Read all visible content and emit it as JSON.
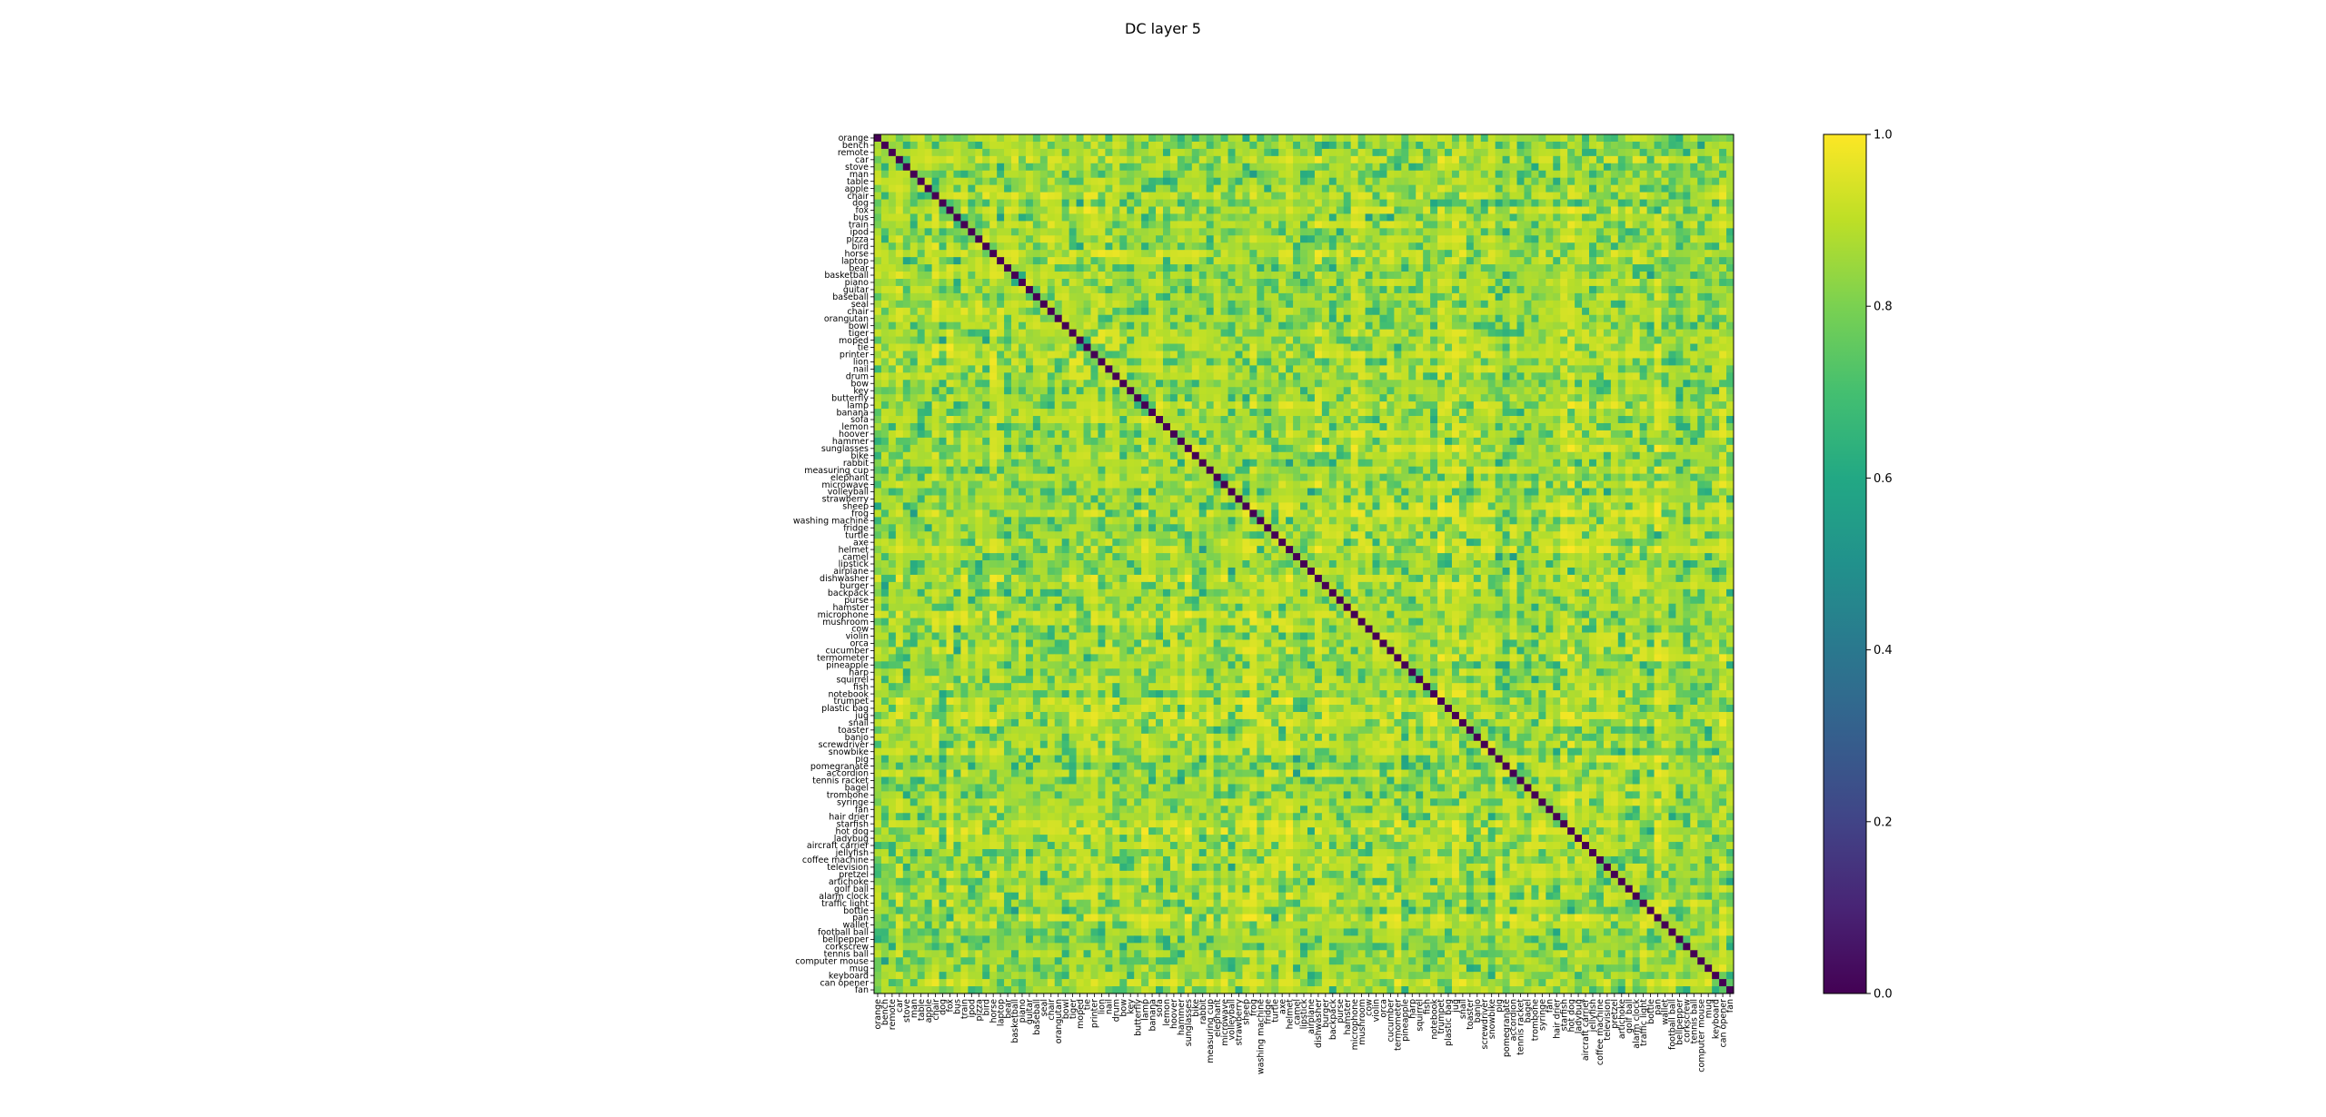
{
  "chart_data": {
    "type": "heatmap",
    "title": "DC layer 5",
    "labels": [
      "orange",
      "bench",
      "remote",
      "car",
      "stove",
      "man",
      "table",
      "apple",
      "chair",
      "dog",
      "fox",
      "bus",
      "train",
      "ipod",
      "pizza",
      "bird",
      "horse",
      "laptop",
      "bear",
      "basketball",
      "piano",
      "guitar",
      "baseball",
      "seal",
      "chair",
      "orangutan",
      "bowl",
      "tiger",
      "moped",
      "tie",
      "printer",
      "lion",
      "nail",
      "drum",
      "bow",
      "key",
      "butterfly",
      "lamp",
      "banana",
      "sofa",
      "lemon",
      "hoover",
      "hammer",
      "sunglasses",
      "bike",
      "rabbit",
      "measuring cup",
      "elephant",
      "microwave",
      "volleyball",
      "strawberry",
      "sheep",
      "frog",
      "washing machine",
      "fridge",
      "turtle",
      "axe",
      "helmet",
      "camel",
      "lipstick",
      "airplane",
      "dishwasher",
      "burger",
      "backpack",
      "purse",
      "hamster",
      "microphone",
      "mushroom",
      "cow",
      "violin",
      "orca",
      "cucumber",
      "termometer",
      "pineapple",
      "harp",
      "squirrel",
      "fish",
      "notebook",
      "trumpet",
      "plastic bag",
      "jug",
      "snail",
      "toaster",
      "banjo",
      "screwdriver",
      "snowbike",
      "pig",
      "pomegranate",
      "accordion",
      "tennis racket",
      "bagel",
      "trombone",
      "syringe",
      "fan",
      "hair drier",
      "starfish",
      "hot dog",
      "ladybug",
      "aircraft carrier",
      "jellyfish",
      "coffee machine",
      "television",
      "pretzel",
      "artichoke",
      "golf ball",
      "alarm clock",
      "traffic light",
      "bottle",
      "pan",
      "wallet",
      "football ball",
      "bellpepper",
      "corkscrew",
      "tennis ball",
      "computer mouse",
      "mug",
      "keyboard",
      "can opener",
      "fan"
    ],
    "value_range": [
      0.0,
      1.0
    ],
    "diagonal_value": 0.0,
    "typical_off_diagonal_value": 0.95,
    "colormap": "viridis",
    "colorbar_ticks": [
      "0.0",
      "0.2",
      "0.4",
      "0.6",
      "0.8",
      "1.0"
    ],
    "colorbar_values": [
      0.0,
      0.2,
      0.4,
      0.6,
      0.8,
      1.0
    ]
  }
}
